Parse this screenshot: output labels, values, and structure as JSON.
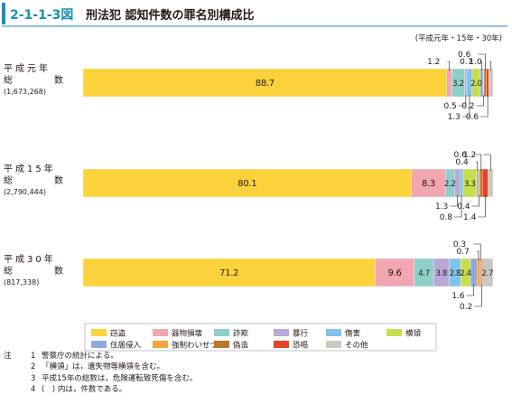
{
  "header": {
    "fig_no": "2-1-1-3図",
    "title": "刑法犯 認知件数の罪名別構成比",
    "period_note": "(平成元年・15年・30年)"
  },
  "chart_data": {
    "type": "bar",
    "orientation": "horizontal",
    "stacked": true,
    "units": "percent",
    "legend_position": "bottom",
    "categories": [
      {
        "line1": "平成元年",
        "line2": "総数",
        "count": "(1,673,268)"
      },
      {
        "line1": "平成15年",
        "line2": "総数",
        "count": "(2,790,444)"
      },
      {
        "line1": "平成30年",
        "line2": "総数",
        "count": "(817,338)"
      }
    ],
    "series": [
      {
        "name": "窃盗",
        "color": "#fcd23c",
        "values": [
          88.7,
          80.1,
          71.2
        ]
      },
      {
        "name": "器物損壊",
        "color": "#f2a6b0",
        "values": [
          1.2,
          8.3,
          9.6
        ]
      },
      {
        "name": "詐欺",
        "color": "#8fcfc9",
        "values": [
          3.2,
          2.2,
          4.7
        ]
      },
      {
        "name": "暴行",
        "color": "#b7a8d6",
        "values": [
          0.5,
          1.3,
          3.8
        ]
      },
      {
        "name": "傷害",
        "color": "#7fc3ec",
        "values": [
          1.3,
          0.8,
          2.8
        ]
      },
      {
        "name": "横領",
        "color": "#c7dd4d",
        "values": [
          2.0,
          3.3,
          2.4
        ]
      },
      {
        "name": "住居侵入",
        "color": "#8fa9dd",
        "values": [
          0.7,
          0.4,
          1.6
        ]
      },
      {
        "name": "強制わいせつ",
        "color": "#f4a53c",
        "values": [
          0.2,
          0.4,
          0.7
        ]
      },
      {
        "name": "偽造",
        "color": "#b8762a",
        "values": [
          0.6,
          0.6,
          0.3
        ]
      },
      {
        "name": "恐喝",
        "color": "#e8412c",
        "values": [
          0.6,
          1.4,
          0.2
        ]
      },
      {
        "name": "その他",
        "color": "#c9c9c4",
        "values": [
          1.0,
          1.2,
          2.7
        ]
      }
    ],
    "inside_labels": [
      [
        {
          "series": 0,
          "text": "88.7"
        },
        {
          "series": 2,
          "text": "3.2"
        },
        {
          "series": 5,
          "text": "2.0"
        }
      ],
      [
        {
          "series": 0,
          "text": "80.1"
        },
        {
          "series": 1,
          "text": "8.3"
        },
        {
          "series": 2,
          "text": "2.2"
        },
        {
          "series": 5,
          "text": "3.3"
        }
      ],
      [
        {
          "series": 0,
          "text": "71.2"
        },
        {
          "series": 1,
          "text": "9.6"
        },
        {
          "series": 2,
          "text": "4.7"
        },
        {
          "series": 3,
          "text": "3.8"
        },
        {
          "series": 4,
          "text": "2.8"
        },
        {
          "series": 5,
          "text": "2.4"
        },
        {
          "series": 10,
          "text": "2.7"
        }
      ]
    ],
    "callouts": [
      [
        {
          "series": 1,
          "text": "1.2",
          "side": "above",
          "level": 1
        },
        {
          "series": 6,
          "text": "0.7",
          "side": "above",
          "level": 1
        },
        {
          "series": 8,
          "text": "0.6",
          "side": "above",
          "level": 2
        },
        {
          "series": 10,
          "text": "1.0",
          "side": "above",
          "level": 1
        },
        {
          "series": 3,
          "text": "0.5",
          "side": "below",
          "level": 1
        },
        {
          "series": 4,
          "text": "1.3",
          "side": "below",
          "level": 2
        },
        {
          "series": 7,
          "text": "0.2",
          "side": "below",
          "level": 1
        },
        {
          "series": 9,
          "text": "0.6",
          "side": "below",
          "level": 2
        }
      ],
      [
        {
          "series": 6,
          "text": "0.4",
          "side": "above",
          "level": 1
        },
        {
          "series": 8,
          "text": "0.6",
          "side": "above",
          "level": 2
        },
        {
          "series": 10,
          "text": "1.2",
          "side": "above",
          "level": 2
        },
        {
          "series": 3,
          "text": "1.3",
          "side": "below",
          "level": 1
        },
        {
          "series": 4,
          "text": "0.8",
          "side": "below",
          "level": 2
        },
        {
          "series": 7,
          "text": "0.4",
          "side": "below",
          "level": 1
        },
        {
          "series": 9,
          "text": "1.4",
          "side": "below",
          "level": 2
        }
      ],
      [
        {
          "series": 7,
          "text": "0.7",
          "side": "above",
          "level": 1
        },
        {
          "series": 8,
          "text": "0.3",
          "side": "above",
          "level": 2
        },
        {
          "series": 6,
          "text": "1.6",
          "side": "below",
          "level": 1
        },
        {
          "series": 9,
          "text": "0.2",
          "side": "below",
          "level": 2
        }
      ]
    ]
  },
  "notes": {
    "label": "注",
    "items": [
      {
        "num": "1",
        "text": "警察庁の統計による。"
      },
      {
        "num": "2",
        "text": "「横領」は，遺失物等横領を含む。"
      },
      {
        "num": "3",
        "text": "平成15年の総数は，危険運転致死傷を含む。"
      },
      {
        "num": "4",
        "text": "(　) 内は，件数である。"
      }
    ]
  }
}
